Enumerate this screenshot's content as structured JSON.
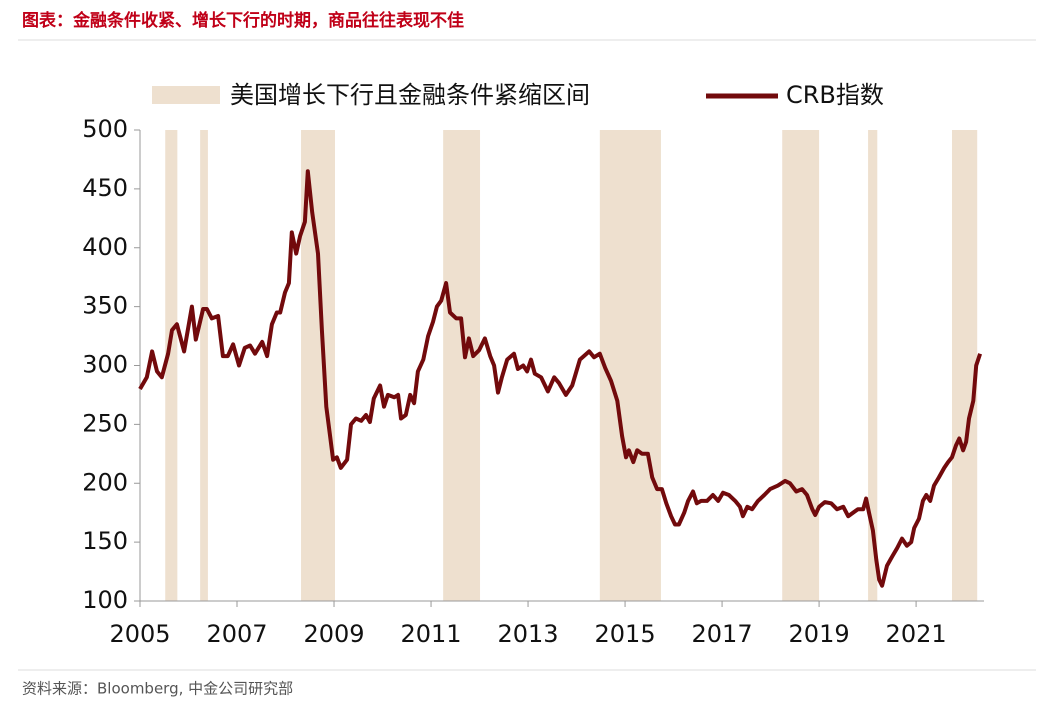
{
  "chart_data": {
    "type": "line",
    "title": "图表：金融条件收紧、增长下行的时期，商品往往表现不佳",
    "source": "资料来源：Bloomberg, 中金公司研究部",
    "shaded_intervals": {
      "name": "美国增长下行且金融条件紧缩区间",
      "color": "#eee0cf",
      "ranges": [
        [
          2005.52,
          2005.77
        ],
        [
          2006.24,
          2006.4
        ],
        [
          2008.32,
          2009.02
        ],
        [
          2011.25,
          2012.01
        ],
        [
          2014.48,
          2015.74
        ],
        [
          2018.24,
          2019.0
        ],
        [
          2020.01,
          2020.2
        ],
        [
          2021.74,
          2022.26
        ]
      ]
    },
    "x": [
      2005.0,
      2005.14,
      2005.25,
      2005.35,
      2005.45,
      2005.58,
      2005.66,
      2005.76,
      2005.91,
      2006.07,
      2006.15,
      2006.3,
      2006.38,
      2006.48,
      2006.61,
      2006.71,
      2006.81,
      2006.92,
      2007.04,
      2007.16,
      2007.27,
      2007.37,
      2007.52,
      2007.62,
      2007.72,
      2007.82,
      2007.89,
      2007.99,
      2008.07,
      2008.13,
      2008.22,
      2008.3,
      2008.4,
      2008.46,
      2008.55,
      2008.67,
      2008.75,
      2008.84,
      2008.92,
      2008.98,
      2009.06,
      2009.14,
      2009.27,
      2009.35,
      2009.45,
      2009.56,
      2009.66,
      2009.74,
      2009.82,
      2009.95,
      2010.03,
      2010.11,
      2010.24,
      2010.32,
      2010.38,
      2010.48,
      2010.57,
      2010.65,
      2010.73,
      2010.84,
      2010.94,
      2011.04,
      2011.12,
      2011.21,
      2011.31,
      2011.39,
      2011.52,
      2011.62,
      2011.7,
      2011.78,
      2011.87,
      2011.99,
      2012.11,
      2012.22,
      2012.3,
      2012.38,
      2012.46,
      2012.57,
      2012.71,
      2012.79,
      2012.9,
      2012.98,
      2013.06,
      2013.14,
      2013.27,
      2013.41,
      2013.54,
      2013.64,
      2013.78,
      2013.91,
      2014.07,
      2014.26,
      2014.36,
      2014.48,
      2014.59,
      2014.71,
      2014.84,
      2014.94,
      2015.02,
      2015.08,
      2015.17,
      2015.25,
      2015.35,
      2015.47,
      2015.56,
      2015.66,
      2015.76,
      2015.85,
      2015.95,
      2016.03,
      2016.11,
      2016.22,
      2016.3,
      2016.4,
      2016.48,
      2016.57,
      2016.69,
      2016.81,
      2016.92,
      2017.02,
      2017.14,
      2017.27,
      2017.37,
      2017.43,
      2017.52,
      2017.62,
      2017.74,
      2017.87,
      2017.99,
      2018.15,
      2018.3,
      2018.4,
      2018.53,
      2018.65,
      2018.75,
      2018.86,
      2018.92,
      2019.0,
      2019.12,
      2019.25,
      2019.37,
      2019.5,
      2019.6,
      2019.7,
      2019.8,
      2019.91,
      2019.97,
      2020.03,
      2020.11,
      2020.18,
      2020.24,
      2020.3,
      2020.4,
      2020.51,
      2020.61,
      2020.71,
      2020.81,
      2020.9,
      2020.96,
      2021.06,
      2021.14,
      2021.21,
      2021.29,
      2021.37,
      2021.47,
      2021.58,
      2021.66,
      2021.74,
      2021.82,
      2021.89,
      2021.97,
      2022.03,
      2022.09,
      2022.18,
      2022.24,
      2022.32
    ],
    "series": [
      {
        "name": "CRB指数",
        "color": "#720a0c",
        "values": [
          280,
          290,
          312,
          295,
          290,
          310,
          330,
          335,
          312,
          350,
          322,
          348,
          348,
          340,
          342,
          308,
          308,
          318,
          300,
          315,
          317,
          310,
          320,
          308,
          335,
          345,
          345,
          362,
          370,
          413,
          395,
          410,
          422,
          465,
          430,
          395,
          330,
          265,
          240,
          220,
          222,
          213,
          220,
          250,
          255,
          253,
          258,
          252,
          272,
          283,
          265,
          275,
          273,
          275,
          255,
          258,
          275,
          268,
          295,
          305,
          325,
          337,
          350,
          355,
          370,
          345,
          340,
          340,
          307,
          323,
          308,
          313,
          323,
          308,
          300,
          277,
          290,
          305,
          310,
          297,
          300,
          295,
          305,
          293,
          290,
          278,
          290,
          285,
          275,
          283,
          305,
          312,
          307,
          310,
          298,
          287,
          270,
          240,
          222,
          228,
          218,
          228,
          225,
          225,
          205,
          195,
          195,
          183,
          172,
          165,
          165,
          175,
          185,
          193,
          183,
          185,
          185,
          190,
          185,
          192,
          190,
          185,
          180,
          172,
          180,
          178,
          185,
          190,
          195,
          198,
          202,
          200,
          193,
          195,
          190,
          178,
          173,
          180,
          184,
          183,
          178,
          180,
          172,
          175,
          178,
          178,
          187,
          175,
          160,
          135,
          118,
          113,
          130,
          138,
          145,
          153,
          147,
          150,
          162,
          170,
          185,
          190,
          185,
          198,
          205,
          213,
          218,
          222,
          232,
          238,
          228,
          235,
          255,
          270,
          300,
          310
        ]
      }
    ],
    "xlim": [
      2005,
      2022.4
    ],
    "xticks": [
      2005,
      2007,
      2009,
      2011,
      2013,
      2015,
      2017,
      2019,
      2021
    ],
    "ylim": [
      100,
      500
    ],
    "yticks": [
      100,
      150,
      200,
      250,
      300,
      350,
      400,
      450,
      500
    ],
    "grid": false,
    "legend": "top"
  }
}
